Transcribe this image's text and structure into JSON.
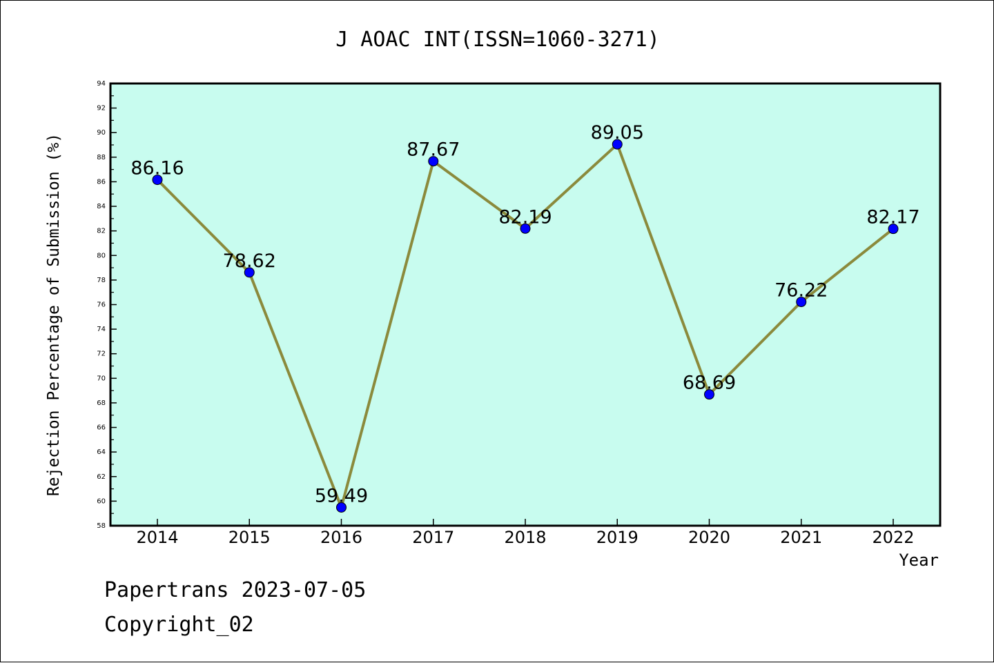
{
  "footer": {
    "line1": "Papertrans 2023-07-05",
    "line2": "Copyright_02"
  },
  "chart_data": {
    "type": "line",
    "title": "J AOAC INT(ISSN=1060-3271)",
    "xlabel": "Year",
    "ylabel": "Rejection Percentage of Submission (%)",
    "categories": [
      "2014",
      "2015",
      "2016",
      "2017",
      "2018",
      "2019",
      "2020",
      "2021",
      "2022"
    ],
    "series": [
      {
        "values": [
          86.16,
          78.62,
          59.49,
          87.67,
          82.19,
          89.05,
          68.69,
          76.22,
          82.17
        ],
        "value_labels": [
          "86.16",
          "78.62",
          "59.49",
          "87.67",
          "82.19",
          "89.05",
          "68.69",
          "76.22",
          "82.17"
        ]
      }
    ],
    "ylim": [
      58,
      94
    ],
    "yticks": [
      58,
      60,
      62,
      64,
      66,
      68,
      70,
      72,
      74,
      76,
      78,
      80,
      82,
      84,
      86,
      88,
      90,
      92,
      94
    ],
    "grid": false,
    "legend": "none",
    "colors": {
      "plot_background": "#c8fcef",
      "line": "#8b8a3c",
      "marker": "#0000ff",
      "axis": "#000000"
    }
  }
}
